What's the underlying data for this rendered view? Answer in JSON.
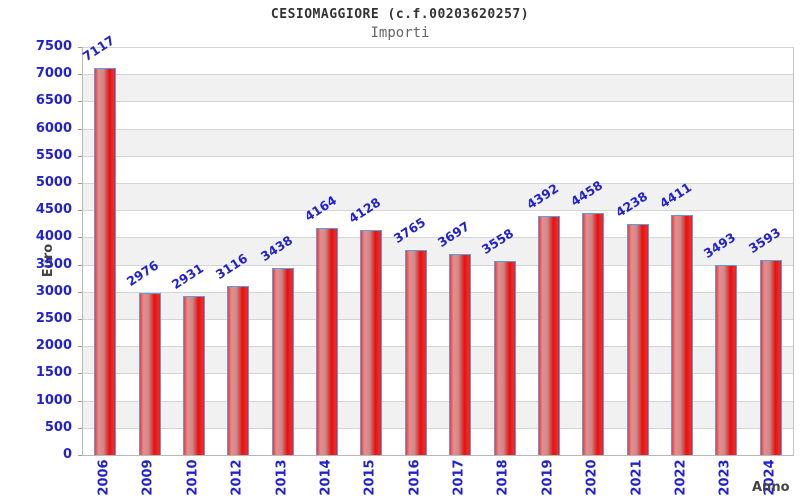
{
  "chart_data": {
    "type": "bar",
    "title": "CESIOMAGGIORE (c.f.00203620257)",
    "subtitle": "Importi",
    "xlabel": "Anno",
    "ylabel": "Euro",
    "categories": [
      "2006",
      "2009",
      "2010",
      "2012",
      "2013",
      "2014",
      "2015",
      "2016",
      "2017",
      "2018",
      "2019",
      "2020",
      "2021",
      "2022",
      "2023",
      "2024"
    ],
    "values": [
      7117,
      2976,
      2931,
      3116,
      3438,
      4164,
      4128,
      3765,
      3697,
      3558,
      4392,
      4458,
      4238,
      4411,
      3493,
      3593
    ],
    "ylim": [
      0,
      7500
    ],
    "ytick_step": 500,
    "grid": "horizontal alternating bands with gridlines every 500",
    "legend": "none",
    "bar_value_labels_rotated": true,
    "colors": {
      "bar_fill": "#e41212",
      "bar_fill_highlight": "#c98c8c",
      "bar_border": "#5b9ee0",
      "axis_text": "#2222cc",
      "band_gray": "#f1f1f1",
      "gridline": "#d4d4d4",
      "title_text": "#333333",
      "subtitle_text": "#666666",
      "axis_title_text": "#444444"
    }
  }
}
